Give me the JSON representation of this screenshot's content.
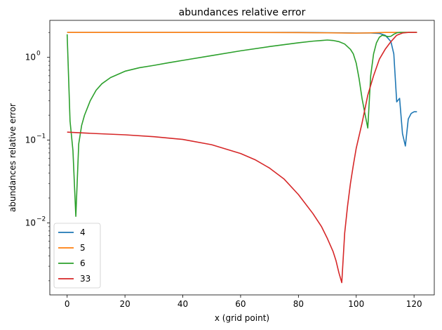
{
  "chart_data": {
    "type": "line",
    "title": "abundances relative error",
    "xlabel": "x (grid point)",
    "ylabel": "abundances relative error",
    "xlim": [
      -6,
      127
    ],
    "ylim": [
      0.00135,
      2.8
    ],
    "yscale": "log",
    "grid": false,
    "legend_position": "lower-left",
    "x_ticks": [
      0,
      20,
      40,
      60,
      80,
      100,
      120
    ],
    "x_tick_labels": [
      "0",
      "20",
      "40",
      "60",
      "80",
      "100",
      "120"
    ],
    "y_ticks": [
      0.01,
      0.1,
      1
    ],
    "y_tick_labels": [
      "10",
      "10",
      "10"
    ],
    "y_tick_exponents": [
      "−2",
      "−1",
      "0"
    ],
    "series": [
      {
        "name": "4",
        "color": "#1f77b4",
        "points": [
          [
            0,
            2.0
          ],
          [
            20,
            2.0
          ],
          [
            40,
            2.0
          ],
          [
            60,
            2.0
          ],
          [
            80,
            2.0
          ],
          [
            95,
            1.98
          ],
          [
            100,
            1.97
          ],
          [
            105,
            1.97
          ],
          [
            108,
            1.95
          ],
          [
            110,
            1.85
          ],
          [
            111,
            1.7
          ],
          [
            112,
            1.55
          ],
          [
            113,
            1.1
          ],
          [
            114,
            0.29
          ],
          [
            115,
            0.32
          ],
          [
            116,
            0.12
          ],
          [
            117,
            0.085
          ],
          [
            118,
            0.18
          ],
          [
            119,
            0.21
          ],
          [
            120,
            0.22
          ],
          [
            121,
            0.22
          ]
        ]
      },
      {
        "name": "5",
        "color": "#ff7f0e",
        "points": [
          [
            0,
            2.0
          ],
          [
            20,
            2.0
          ],
          [
            40,
            2.0
          ],
          [
            60,
            2.0
          ],
          [
            80,
            1.99
          ],
          [
            90,
            1.98
          ],
          [
            95,
            1.97
          ],
          [
            100,
            1.96
          ],
          [
            105,
            1.98
          ],
          [
            110,
            2.0
          ],
          [
            121,
            2.0
          ]
        ]
      },
      {
        "name": "6",
        "color": "#2ca02c",
        "points": [
          [
            0,
            1.9
          ],
          [
            1,
            0.17
          ],
          [
            2,
            0.075
          ],
          [
            3,
            0.012
          ],
          [
            4,
            0.09
          ],
          [
            5,
            0.15
          ],
          [
            6,
            0.2
          ],
          [
            8,
            0.3
          ],
          [
            10,
            0.4
          ],
          [
            12,
            0.48
          ],
          [
            15,
            0.57
          ],
          [
            20,
            0.68
          ],
          [
            25,
            0.75
          ],
          [
            30,
            0.8
          ],
          [
            35,
            0.86
          ],
          [
            40,
            0.92
          ],
          [
            50,
            1.05
          ],
          [
            60,
            1.2
          ],
          [
            70,
            1.35
          ],
          [
            80,
            1.5
          ],
          [
            85,
            1.57
          ],
          [
            88,
            1.6
          ],
          [
            90,
            1.62
          ],
          [
            92,
            1.6
          ],
          [
            94,
            1.55
          ],
          [
            96,
            1.45
          ],
          [
            98,
            1.25
          ],
          [
            99,
            1.1
          ],
          [
            100,
            0.85
          ],
          [
            101,
            0.55
          ],
          [
            102,
            0.32
          ],
          [
            103,
            0.21
          ],
          [
            104,
            0.14
          ],
          [
            105,
            0.6
          ],
          [
            106,
            1.1
          ],
          [
            107,
            1.5
          ],
          [
            108,
            1.75
          ],
          [
            109,
            1.85
          ],
          [
            110,
            1.82
          ],
          [
            111,
            1.78
          ],
          [
            112,
            1.8
          ],
          [
            113,
            1.9
          ],
          [
            114,
            1.98
          ],
          [
            115,
            2.0
          ],
          [
            121,
            2.0
          ]
        ]
      },
      {
        "name": "33",
        "color": "#d62728",
        "points": [
          [
            0,
            0.125
          ],
          [
            10,
            0.12
          ],
          [
            20,
            0.116
          ],
          [
            30,
            0.11
          ],
          [
            40,
            0.102
          ],
          [
            50,
            0.088
          ],
          [
            60,
            0.069
          ],
          [
            65,
            0.058
          ],
          [
            70,
            0.046
          ],
          [
            75,
            0.034
          ],
          [
            80,
            0.022
          ],
          [
            85,
            0.013
          ],
          [
            88,
            0.009
          ],
          [
            90,
            0.0065
          ],
          [
            92,
            0.0045
          ],
          [
            93,
            0.0035
          ],
          [
            94,
            0.0025
          ],
          [
            95,
            0.0019
          ],
          [
            96,
            0.0075
          ],
          [
            97,
            0.016
          ],
          [
            98,
            0.03
          ],
          [
            99,
            0.05
          ],
          [
            100,
            0.08
          ],
          [
            102,
            0.16
          ],
          [
            104,
            0.35
          ],
          [
            106,
            0.6
          ],
          [
            108,
            0.95
          ],
          [
            110,
            1.25
          ],
          [
            112,
            1.55
          ],
          [
            114,
            1.85
          ],
          [
            116,
            1.97
          ],
          [
            118,
            2.0
          ],
          [
            121,
            2.0
          ]
        ]
      }
    ]
  }
}
